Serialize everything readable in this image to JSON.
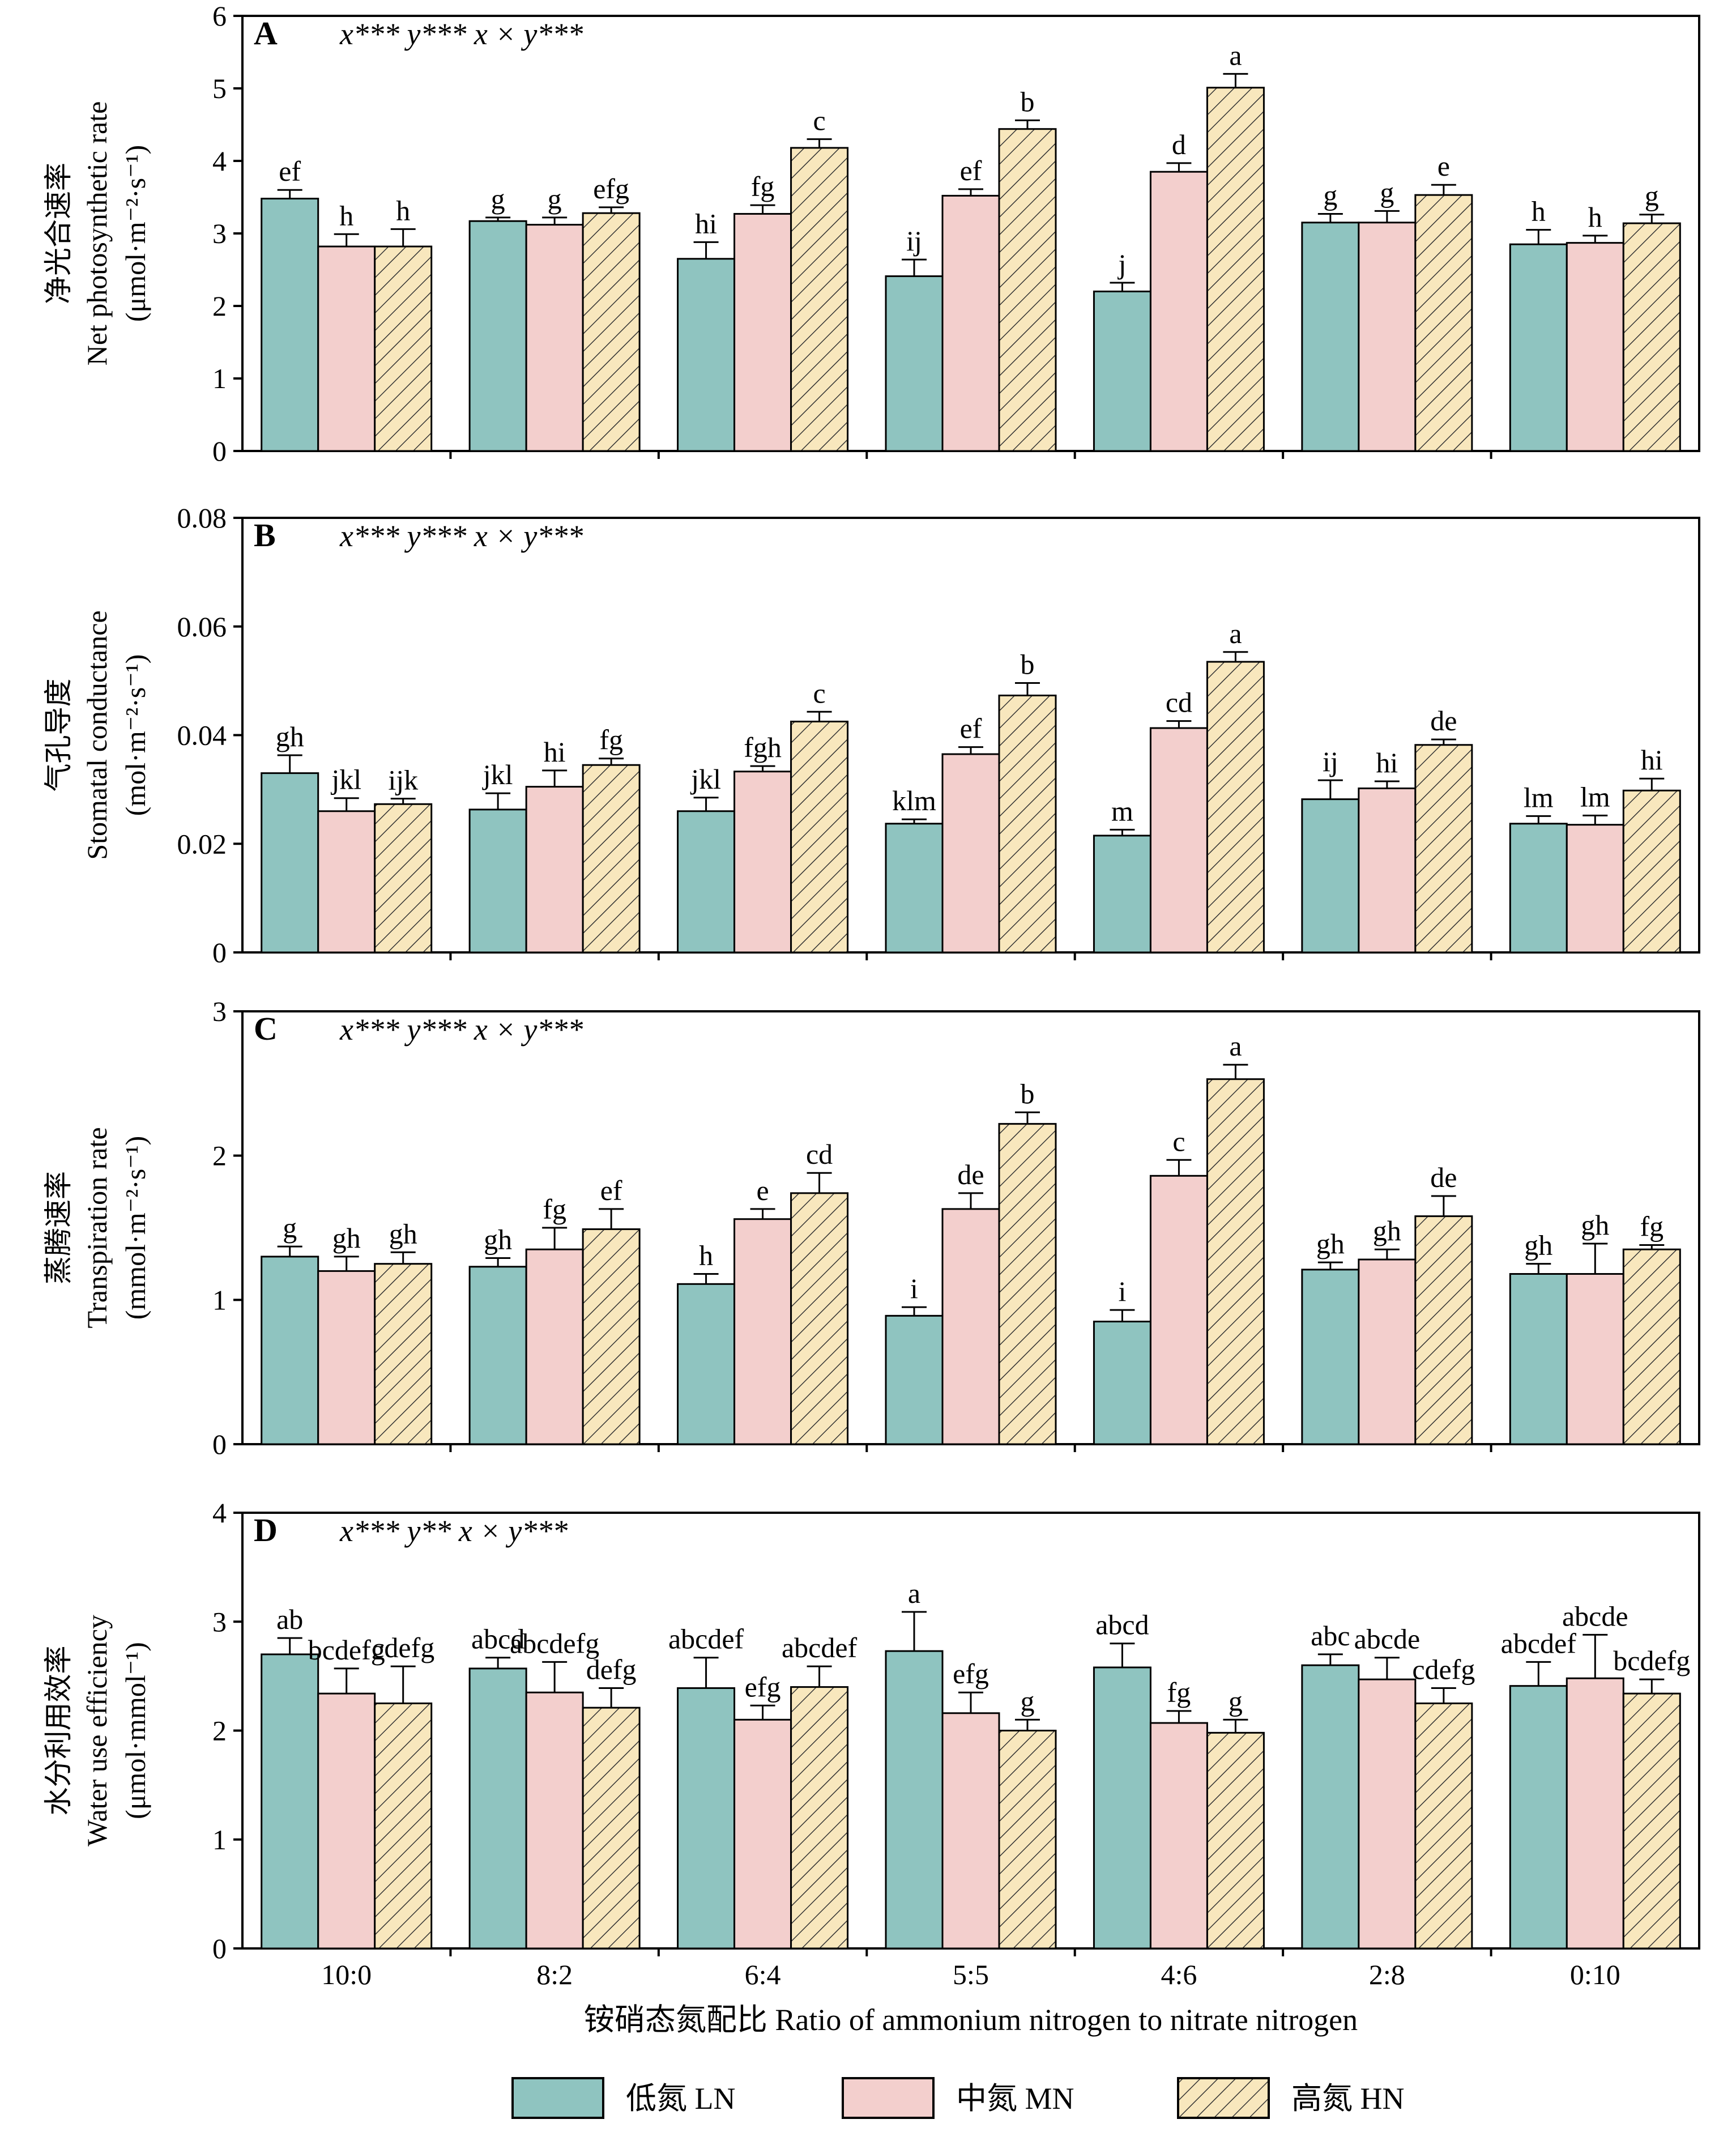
{
  "colors": {
    "LN": "#8fc4c0",
    "MN": "#f3cfcd",
    "HN": "#f8e7bd",
    "HN_hatch": "#333333",
    "stroke": "#000000"
  },
  "x_axis": {
    "categories": [
      "10:0",
      "8:2",
      "6:4",
      "5:5",
      "4:6",
      "2:8",
      "0:10"
    ],
    "label": "铵硝态氮配比 Ratio of ammonium nitrogen to nitrate nitrogen"
  },
  "legend": {
    "items": [
      {
        "key": "LN",
        "label": "低氮  LN"
      },
      {
        "key": "MN",
        "label": "中氮  MN"
      },
      {
        "key": "HN",
        "label": "高氮 HN"
      }
    ]
  },
  "chart_data": [
    {
      "type": "bar",
      "panel": "A",
      "stats": "x***    y***    x × y***",
      "ylabel_cn": "净光合速率",
      "ylabel_en": "Net photosynthetic rate",
      "ylabel_unit": "(μmol·m⁻²·s⁻¹)",
      "ylim": [
        0,
        6
      ],
      "yticks": [
        "0",
        "1",
        "2",
        "3",
        "4",
        "5",
        "6"
      ],
      "categories": [
        "10:0",
        "8:2",
        "6:4",
        "5:5",
        "4:6",
        "2:8",
        "0:10"
      ],
      "series": [
        {
          "name": "低氮  LN",
          "key": "LN",
          "values": [
            3.48,
            3.17,
            2.65,
            2.41,
            2.2,
            3.15,
            2.85
          ],
          "errors": [
            0.12,
            0.05,
            0.23,
            0.23,
            0.12,
            0.12,
            0.2
          ],
          "labels": [
            "ef",
            "g",
            "hi",
            "ij",
            "j",
            "g",
            "h"
          ]
        },
        {
          "name": "中氮  MN",
          "key": "MN",
          "values": [
            2.82,
            3.12,
            3.27,
            3.52,
            3.85,
            3.15,
            2.87
          ],
          "errors": [
            0.17,
            0.1,
            0.12,
            0.09,
            0.12,
            0.16,
            0.1
          ],
          "labels": [
            "h",
            "g",
            "fg",
            "ef",
            "d",
            "g",
            "h"
          ]
        },
        {
          "name": "高氮 HN",
          "key": "HN",
          "values": [
            2.82,
            3.28,
            4.18,
            4.44,
            5.01,
            3.53,
            3.14
          ],
          "errors": [
            0.24,
            0.08,
            0.12,
            0.12,
            0.19,
            0.14,
            0.12
          ],
          "labels": [
            "h",
            "efg",
            "c",
            "b",
            "a",
            "e",
            "g"
          ]
        }
      ]
    },
    {
      "type": "bar",
      "panel": "B",
      "stats": "x***    y***    x × y***",
      "ylabel_cn": "气孔导度",
      "ylabel_en": "Stomatal conductance",
      "ylabel_unit": "(mol·m⁻²·s⁻¹)",
      "ylim": [
        0,
        0.08
      ],
      "yticks": [
        "0",
        "0.02",
        "0.04",
        "0.06",
        "0.08"
      ],
      "categories": [
        "10:0",
        "8:2",
        "6:4",
        "5:5",
        "4:6",
        "2:8",
        "0:10"
      ],
      "series": [
        {
          "name": "低氮  LN",
          "key": "LN",
          "values": [
            0.033,
            0.0263,
            0.026,
            0.0237,
            0.0215,
            0.0282,
            0.0237
          ],
          "errors": [
            0.0033,
            0.003,
            0.0025,
            0.0008,
            0.0011,
            0.0035,
            0.0014
          ],
          "labels": [
            "gh",
            "jkl",
            "jkl",
            "klm",
            "m",
            "ij",
            "lm"
          ]
        },
        {
          "name": "中氮  MN",
          "key": "MN",
          "values": [
            0.026,
            0.0305,
            0.0333,
            0.0365,
            0.0413,
            0.0302,
            0.0235
          ],
          "errors": [
            0.0024,
            0.003,
            0.001,
            0.0013,
            0.0013,
            0.0013,
            0.0017
          ],
          "labels": [
            "jkl",
            "hi",
            "fgh",
            "ef",
            "cd",
            "hi",
            "lm"
          ]
        },
        {
          "name": "高氮 HN",
          "key": "HN",
          "values": [
            0.0273,
            0.0345,
            0.0425,
            0.0473,
            0.0535,
            0.0382,
            0.0298
          ],
          "errors": [
            0.001,
            0.0012,
            0.0018,
            0.0023,
            0.0018,
            0.001,
            0.0022
          ],
          "labels": [
            "ijk",
            "fg",
            "c",
            "b",
            "a",
            "de",
            "hi"
          ]
        }
      ]
    },
    {
      "type": "bar",
      "panel": "C",
      "stats": "x***    y***    x × y***",
      "ylabel_cn": "蒸腾速率",
      "ylabel_en": "Transpiration rate",
      "ylabel_unit": "(mmol·m⁻²·s⁻¹)",
      "ylim": [
        0,
        3
      ],
      "yticks": [
        "0",
        "1",
        "2",
        "3"
      ],
      "categories": [
        "10:0",
        "8:2",
        "6:4",
        "5:5",
        "4:6",
        "2:8",
        "0:10"
      ],
      "series": [
        {
          "name": "低氮  LN",
          "key": "LN",
          "values": [
            1.3,
            1.23,
            1.11,
            0.89,
            0.85,
            1.21,
            1.18
          ],
          "errors": [
            0.07,
            0.06,
            0.07,
            0.06,
            0.08,
            0.05,
            0.07
          ],
          "labels": [
            "g",
            "gh",
            "h",
            "i",
            "i",
            "gh",
            "gh"
          ]
        },
        {
          "name": "中氮  MN",
          "key": "MN",
          "values": [
            1.2,
            1.35,
            1.56,
            1.63,
            1.86,
            1.28,
            1.18
          ],
          "errors": [
            0.1,
            0.15,
            0.07,
            0.11,
            0.11,
            0.07,
            0.21
          ],
          "labels": [
            "gh",
            "fg",
            "e",
            "de",
            "c",
            "gh",
            "gh"
          ]
        },
        {
          "name": "高氮 HN",
          "key": "HN",
          "values": [
            1.25,
            1.49,
            1.74,
            2.22,
            2.53,
            1.58,
            1.35
          ],
          "errors": [
            0.08,
            0.14,
            0.14,
            0.08,
            0.1,
            0.14,
            0.03
          ],
          "labels": [
            "gh",
            "ef",
            "cd",
            "b",
            "a",
            "de",
            "fg"
          ]
        }
      ]
    },
    {
      "type": "bar",
      "panel": "D",
      "stats": "x***    y**    x × y***",
      "ylabel_cn": "水分利用效率",
      "ylabel_en": "Water use efficiency",
      "ylabel_unit": "(μmol·mmol⁻¹)",
      "ylim": [
        0,
        4
      ],
      "yticks": [
        "0",
        "1",
        "2",
        "3",
        "4"
      ],
      "categories": [
        "10:0",
        "8:2",
        "6:4",
        "5:5",
        "4:6",
        "2:8",
        "0:10"
      ],
      "series": [
        {
          "name": "低氮  LN",
          "key": "LN",
          "values": [
            2.7,
            2.57,
            2.39,
            2.73,
            2.58,
            2.6,
            2.41
          ],
          "errors": [
            0.15,
            0.1,
            0.28,
            0.36,
            0.22,
            0.1,
            0.22
          ],
          "labels": [
            "ab",
            "abcd",
            "abcdef",
            "a",
            "abcd",
            "abc",
            "abcdef"
          ]
        },
        {
          "name": "中氮  MN",
          "key": "MN",
          "values": [
            2.34,
            2.35,
            2.1,
            2.16,
            2.07,
            2.47,
            2.48
          ],
          "errors": [
            0.23,
            0.28,
            0.13,
            0.19,
            0.11,
            0.2,
            0.4
          ],
          "labels": [
            "bcdefg",
            "abcdefg",
            "efg",
            "efg",
            "fg",
            "abcde",
            "abcde"
          ]
        },
        {
          "name": "高氮 HN",
          "key": "HN",
          "values": [
            2.25,
            2.21,
            2.4,
            2.0,
            1.98,
            2.25,
            2.34
          ],
          "errors": [
            0.34,
            0.18,
            0.19,
            0.1,
            0.12,
            0.14,
            0.13
          ],
          "labels": [
            "cdefg",
            "defg",
            "abcdef",
            "g",
            "g",
            "cdefg",
            "bcdefg"
          ]
        }
      ]
    }
  ]
}
